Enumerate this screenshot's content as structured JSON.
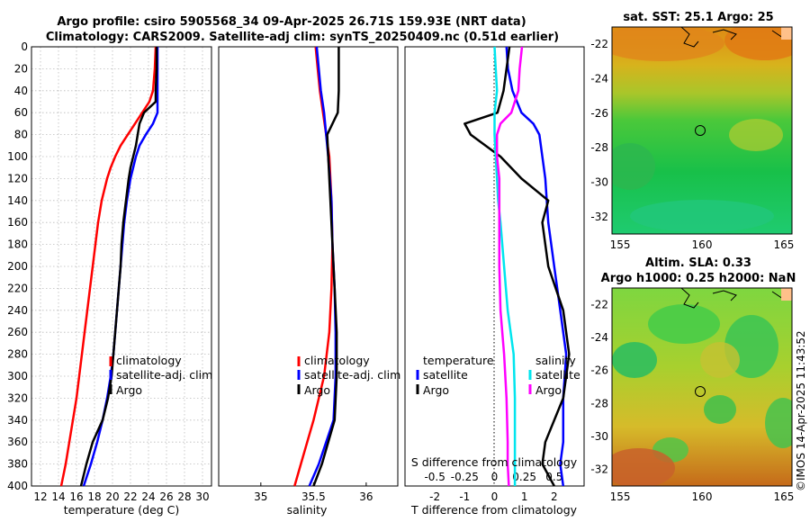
{
  "title": {
    "line1": "Argo profile: csiro 5905568_34 09-Apr-2025 26.71S 159.93E (NRT data)",
    "line2": "Climatology: CARS2009. Satellite-adj clim: synTS_20250409.nc (0.51d earlier)"
  },
  "colors": {
    "climatology": "#ff0000",
    "satellite": "#0000ff",
    "argo": "#000000",
    "sal_satellite": "#00e5ee",
    "sal_argo": "#ff00ff"
  },
  "chart_data": [
    {
      "type": "line",
      "name": "temperature-profile",
      "xlabel": "temperature (deg C)",
      "xlim": [
        11,
        31
      ],
      "ylim": [
        0,
        400
      ],
      "xticks": [
        "12",
        "14",
        "16",
        "18",
        "20",
        "22",
        "24",
        "26",
        "28",
        "30"
      ],
      "yticks": [
        "0",
        "20",
        "40",
        "60",
        "80",
        "100",
        "120",
        "140",
        "160",
        "180",
        "200",
        "220",
        "240",
        "260",
        "280",
        "300",
        "320",
        "340",
        "360",
        "380",
        "400"
      ],
      "grid": true,
      "legend": [
        "climatology",
        "satellite-adj. clim",
        "Argo"
      ],
      "depth": [
        0,
        20,
        40,
        50,
        60,
        70,
        80,
        90,
        100,
        110,
        120,
        140,
        160,
        180,
        200,
        220,
        240,
        260,
        280,
        300,
        320,
        340,
        360,
        380,
        400
      ],
      "series": [
        {
          "name": "climatology",
          "values": [
            24.8,
            24.7,
            24.5,
            24.1,
            23.3,
            22.5,
            21.7,
            20.9,
            20.3,
            19.8,
            19.4,
            18.8,
            18.4,
            18.1,
            17.8,
            17.5,
            17.2,
            16.9,
            16.6,
            16.3,
            16.0,
            15.6,
            15.2,
            14.8,
            14.3
          ]
        },
        {
          "name": "satellite-adj. clim",
          "values": [
            25.0,
            25.0,
            25.0,
            25.0,
            25.0,
            24.5,
            23.7,
            23.0,
            22.6,
            22.3,
            22.0,
            21.6,
            21.3,
            21.1,
            20.9,
            20.7,
            20.5,
            20.3,
            20.1,
            19.8,
            19.4,
            18.9,
            18.3,
            17.6,
            16.8
          ]
        },
        {
          "name": "Argo",
          "values": [
            24.9,
            24.9,
            24.8,
            24.8,
            23.5,
            23.0,
            22.8,
            22.6,
            22.3,
            22.0,
            21.8,
            21.5,
            21.2,
            21.0,
            20.9,
            20.7,
            20.5,
            20.3,
            20.1,
            19.9,
            19.5,
            18.9,
            17.8,
            17.1,
            16.5
          ]
        }
      ]
    },
    {
      "type": "line",
      "name": "salinity-profile",
      "xlabel": "salinity",
      "xlim": [
        34.6,
        36.3
      ],
      "ylim": [
        0,
        400
      ],
      "xticks": [
        "35",
        "35.5",
        "36"
      ],
      "grid": false,
      "legend": [
        "climatology",
        "satellite-adj. clim",
        "Argo"
      ],
      "depth": [
        0,
        20,
        40,
        60,
        80,
        100,
        140,
        180,
        220,
        260,
        300,
        340,
        380,
        400
      ],
      "series": [
        {
          "name": "climatology",
          "values": [
            35.52,
            35.54,
            35.56,
            35.59,
            35.62,
            35.65,
            35.67,
            35.68,
            35.67,
            35.65,
            35.6,
            35.5,
            35.38,
            35.32
          ]
        },
        {
          "name": "satellite-adj. clim",
          "values": [
            35.53,
            35.55,
            35.57,
            35.6,
            35.62,
            35.64,
            35.67,
            35.68,
            35.7,
            35.71,
            35.71,
            35.69,
            35.55,
            35.46
          ]
        },
        {
          "name": "Argo",
          "values": [
            35.74,
            35.74,
            35.74,
            35.73,
            35.63,
            35.64,
            35.66,
            35.68,
            35.7,
            35.72,
            35.72,
            35.7,
            35.58,
            35.5
          ]
        }
      ]
    },
    {
      "type": "line",
      "name": "difference-profile",
      "xlabel": "T difference from climatology",
      "x2label": "S difference from climatology",
      "xlim": [
        -3,
        3
      ],
      "x2ticks": [
        "-0.5",
        "-0.25",
        "0",
        "0.25",
        "0.5"
      ],
      "xticks": [
        "-2",
        "-1",
        "0",
        "1",
        "2"
      ],
      "ylim": [
        0,
        400
      ],
      "legend": [
        "temperature",
        "satellite",
        "Argo",
        "salinity",
        "satellite",
        "Argo"
      ],
      "depth": [
        0,
        20,
        40,
        60,
        70,
        80,
        100,
        120,
        140,
        160,
        200,
        240,
        280,
        320,
        360,
        380,
        400
      ],
      "series": [
        {
          "name": "T satellite",
          "values": [
            0.4,
            0.45,
            0.6,
            0.9,
            1.3,
            1.5,
            1.6,
            1.7,
            1.75,
            1.8,
            2.0,
            2.2,
            2.4,
            2.3,
            2.3,
            2.2,
            2.3
          ]
        },
        {
          "name": "T Argo",
          "values": [
            0.5,
            0.4,
            0.3,
            0.1,
            -1.0,
            -0.8,
            0.2,
            0.9,
            1.8,
            1.6,
            1.8,
            2.3,
            2.5,
            2.3,
            1.7,
            1.6,
            2.0
          ]
        },
        {
          "name": "S satellite",
          "values": [
            0.0,
            0.01,
            0.02,
            0.0,
            0.0,
            0.0,
            0.01,
            0.02,
            0.03,
            0.05,
            0.08,
            0.11,
            0.16,
            0.17,
            0.17,
            0.17,
            0.17
          ]
        },
        {
          "name": "S Argo",
          "values": [
            0.23,
            0.21,
            0.2,
            0.14,
            0.05,
            0.02,
            0.02,
            0.04,
            0.04,
            0.04,
            0.04,
            0.05,
            0.08,
            0.1,
            0.11,
            0.11,
            0.12
          ]
        }
      ]
    },
    {
      "type": "heatmap",
      "name": "sst-map",
      "title": "sat. SST: 25.1 Argo: 25",
      "xticks": [
        "155",
        "160",
        "165"
      ],
      "yticks": [
        "-22",
        "-24",
        "-26",
        "-28",
        "-30",
        "-32"
      ],
      "xlim": [
        154.5,
        165.5
      ],
      "ylim": [
        -33,
        -21
      ]
    },
    {
      "type": "heatmap",
      "name": "sla-map",
      "title_line1": "Altim. SLA: 0.33",
      "title_line2": "Argo h1000: 0.25 h2000: NaN",
      "xticks": [
        "155",
        "160",
        "165"
      ],
      "yticks": [
        "-22",
        "-24",
        "-26",
        "-28",
        "-30",
        "-32"
      ],
      "xlim": [
        154.5,
        165.5
      ],
      "ylim": [
        -33,
        -21
      ]
    }
  ],
  "watermark": "©IMOS 14-Apr-2025 11:43:52"
}
